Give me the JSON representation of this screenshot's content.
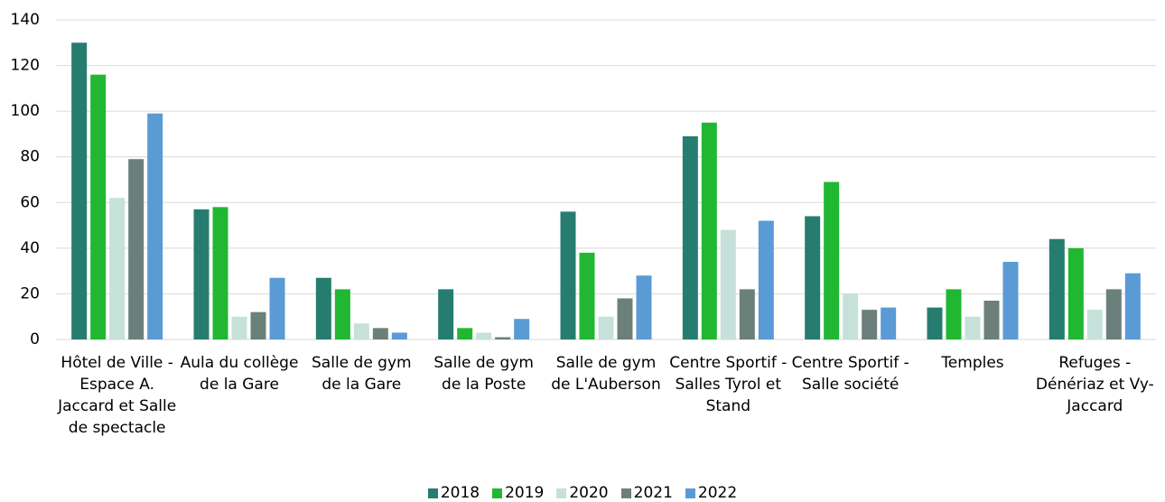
{
  "chart_data": {
    "type": "bar",
    "categories": [
      "Hôtel de Ville - Espace A. Jaccard et Salle de spectacle",
      "Aula du collège de la Gare",
      "Salle de gym de la Gare",
      "Salle de gym de la Poste",
      "Salle de gym de L'Auberson",
      "Centre Sportif - Salles Tyrol et Stand",
      "Centre Sportif - Salle société",
      "Temples",
      "Refuges - Dénériaz et Vy-Jaccard"
    ],
    "series": [
      {
        "name": "2018",
        "color": "#267d6f",
        "values": [
          130,
          57,
          27,
          22,
          56,
          89,
          54,
          14,
          44
        ]
      },
      {
        "name": "2019",
        "color": "#22b732",
        "values": [
          116,
          58,
          22,
          5,
          38,
          95,
          69,
          22,
          40
        ]
      },
      {
        "name": "2020",
        "color": "#c6e1d9",
        "values": [
          62,
          10,
          7,
          3,
          10,
          48,
          20,
          10,
          13
        ]
      },
      {
        "name": "2021",
        "color": "#6c807b",
        "values": [
          79,
          12,
          5,
          1,
          18,
          22,
          13,
          17,
          22
        ]
      },
      {
        "name": "2022",
        "color": "#5b9bd5",
        "values": [
          99,
          27,
          3,
          9,
          28,
          52,
          14,
          34,
          29
        ]
      }
    ],
    "ylim": [
      0,
      140
    ],
    "yticks": [
      0,
      20,
      40,
      60,
      80,
      100,
      120,
      140
    ],
    "grid": true,
    "legend": "bottom"
  }
}
